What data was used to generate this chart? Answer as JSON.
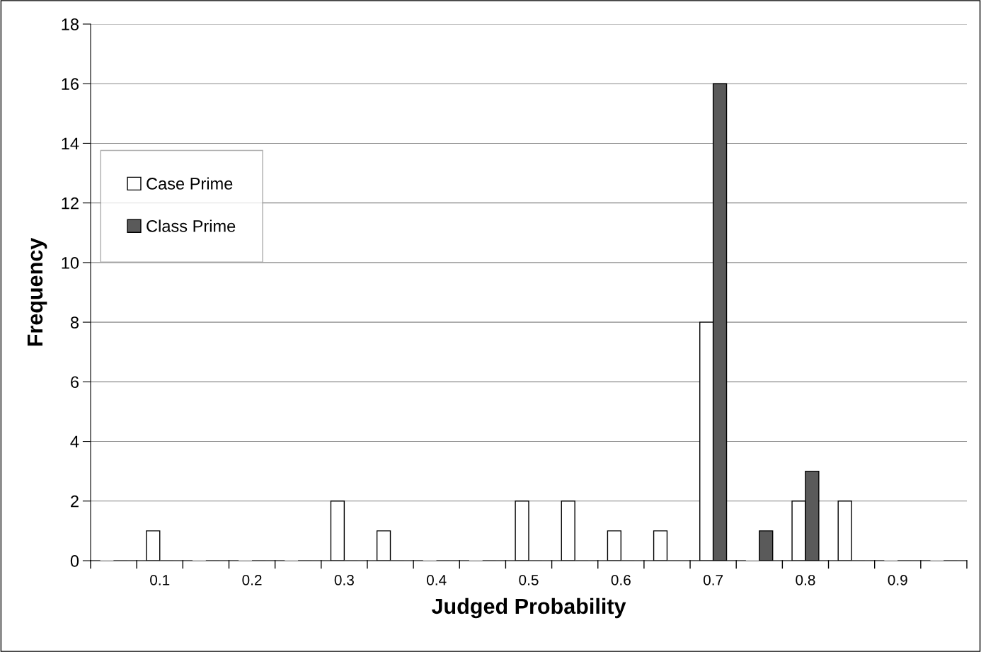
{
  "chart_data": {
    "type": "bar",
    "xlabel": "Judged Probability",
    "ylabel": "Frequency",
    "categories": [
      null,
      "0.1",
      null,
      "0.2",
      null,
      "0.3",
      null,
      "0.4",
      null,
      "0.5",
      null,
      "0.6",
      null,
      "0.7",
      null,
      "0.8",
      null,
      "0.9",
      null
    ],
    "series": [
      {
        "name": "Case Prime",
        "color": "#ffffff",
        "values": [
          0,
          1,
          0,
          0,
          0,
          2,
          1,
          0,
          0,
          2,
          2,
          1,
          1,
          8,
          0,
          2,
          2,
          0,
          0
        ]
      },
      {
        "name": "Class Prime",
        "color": "#5a5a5a",
        "values": [
          0,
          0,
          0,
          0,
          0,
          0,
          0,
          0,
          0,
          0,
          0,
          0,
          0,
          16,
          1,
          3,
          0,
          0,
          0
        ]
      }
    ],
    "ylim": [
      0,
      18
    ],
    "yticks": [
      0,
      2,
      4,
      6,
      8,
      10,
      12,
      14,
      16,
      18
    ],
    "grid": "y",
    "legend": "top left"
  }
}
